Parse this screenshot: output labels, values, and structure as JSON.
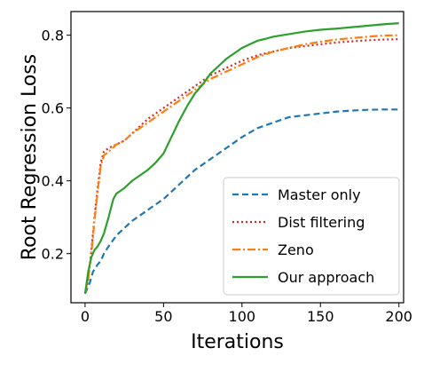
{
  "chart_data": {
    "type": "line",
    "xlabel": "Iterations",
    "ylabel": "Root Regression Loss",
    "xlim": [
      -9,
      203
    ],
    "ylim": [
      0.065,
      0.865
    ],
    "xticks": [
      0,
      50,
      100,
      150,
      200
    ],
    "yticks": [
      0.2,
      0.4,
      0.6,
      0.8
    ],
    "grid": false,
    "legend_position": "lower-right",
    "series": [
      {
        "name": "Master only",
        "color": "#1f77b4",
        "dash": "dashed",
        "points": [
          [
            0,
            0.09
          ],
          [
            3,
            0.12
          ],
          [
            5,
            0.15
          ],
          [
            8,
            0.17
          ],
          [
            10,
            0.18
          ],
          [
            12,
            0.2
          ],
          [
            15,
            0.22
          ],
          [
            20,
            0.25
          ],
          [
            25,
            0.27
          ],
          [
            30,
            0.29
          ],
          [
            40,
            0.32
          ],
          [
            50,
            0.35
          ],
          [
            60,
            0.39
          ],
          [
            70,
            0.43
          ],
          [
            80,
            0.46
          ],
          [
            90,
            0.49
          ],
          [
            100,
            0.52
          ],
          [
            110,
            0.545
          ],
          [
            120,
            0.56
          ],
          [
            130,
            0.575
          ],
          [
            140,
            0.58
          ],
          [
            150,
            0.585
          ],
          [
            160,
            0.59
          ],
          [
            170,
            0.593
          ],
          [
            180,
            0.595
          ],
          [
            190,
            0.596
          ],
          [
            200,
            0.596
          ]
        ]
      },
      {
        "name": "Dist filtering",
        "color": "#d62728",
        "dash": "dotted",
        "points": [
          [
            0,
            0.09
          ],
          [
            2,
            0.13
          ],
          [
            4,
            0.21
          ],
          [
            6,
            0.3
          ],
          [
            8,
            0.38
          ],
          [
            10,
            0.45
          ],
          [
            12,
            0.48
          ],
          [
            15,
            0.49
          ],
          [
            20,
            0.5
          ],
          [
            25,
            0.51
          ],
          [
            30,
            0.53
          ],
          [
            40,
            0.57
          ],
          [
            50,
            0.6
          ],
          [
            60,
            0.63
          ],
          [
            70,
            0.66
          ],
          [
            80,
            0.69
          ],
          [
            90,
            0.71
          ],
          [
            100,
            0.73
          ],
          [
            110,
            0.745
          ],
          [
            120,
            0.755
          ],
          [
            130,
            0.765
          ],
          [
            140,
            0.77
          ],
          [
            150,
            0.775
          ],
          [
            160,
            0.78
          ],
          [
            170,
            0.783
          ],
          [
            180,
            0.786
          ],
          [
            190,
            0.788
          ],
          [
            200,
            0.789
          ]
        ]
      },
      {
        "name": "Zeno",
        "color": "#ff7f0e",
        "dash": "dashdot",
        "points": [
          [
            0,
            0.09
          ],
          [
            2,
            0.13
          ],
          [
            4,
            0.2
          ],
          [
            6,
            0.29
          ],
          [
            8,
            0.37
          ],
          [
            10,
            0.44
          ],
          [
            12,
            0.47
          ],
          [
            15,
            0.48
          ],
          [
            20,
            0.5
          ],
          [
            25,
            0.51
          ],
          [
            30,
            0.53
          ],
          [
            40,
            0.56
          ],
          [
            50,
            0.59
          ],
          [
            60,
            0.62
          ],
          [
            70,
            0.65
          ],
          [
            80,
            0.68
          ],
          [
            90,
            0.7
          ],
          [
            100,
            0.72
          ],
          [
            110,
            0.74
          ],
          [
            120,
            0.755
          ],
          [
            130,
            0.765
          ],
          [
            140,
            0.775
          ],
          [
            150,
            0.782
          ],
          [
            160,
            0.788
          ],
          [
            170,
            0.792
          ],
          [
            180,
            0.796
          ],
          [
            190,
            0.799
          ],
          [
            200,
            0.8
          ]
        ]
      },
      {
        "name": "Our approach",
        "color": "#2ca02c",
        "dash": "solid",
        "points": [
          [
            0,
            0.09
          ],
          [
            2,
            0.15
          ],
          [
            4,
            0.19
          ],
          [
            6,
            0.21
          ],
          [
            8,
            0.22
          ],
          [
            10,
            0.235
          ],
          [
            12,
            0.255
          ],
          [
            15,
            0.3
          ],
          [
            18,
            0.35
          ],
          [
            20,
            0.365
          ],
          [
            25,
            0.38
          ],
          [
            30,
            0.4
          ],
          [
            35,
            0.415
          ],
          [
            40,
            0.43
          ],
          [
            45,
            0.45
          ],
          [
            50,
            0.475
          ],
          [
            55,
            0.52
          ],
          [
            60,
            0.565
          ],
          [
            65,
            0.605
          ],
          [
            70,
            0.64
          ],
          [
            75,
            0.665
          ],
          [
            80,
            0.695
          ],
          [
            85,
            0.715
          ],
          [
            90,
            0.735
          ],
          [
            95,
            0.75
          ],
          [
            100,
            0.765
          ],
          [
            105,
            0.775
          ],
          [
            110,
            0.785
          ],
          [
            115,
            0.79
          ],
          [
            120,
            0.796
          ],
          [
            130,
            0.803
          ],
          [
            140,
            0.81
          ],
          [
            150,
            0.815
          ],
          [
            160,
            0.818
          ],
          [
            170,
            0.822
          ],
          [
            180,
            0.826
          ],
          [
            190,
            0.83
          ],
          [
            200,
            0.833
          ]
        ]
      }
    ]
  }
}
